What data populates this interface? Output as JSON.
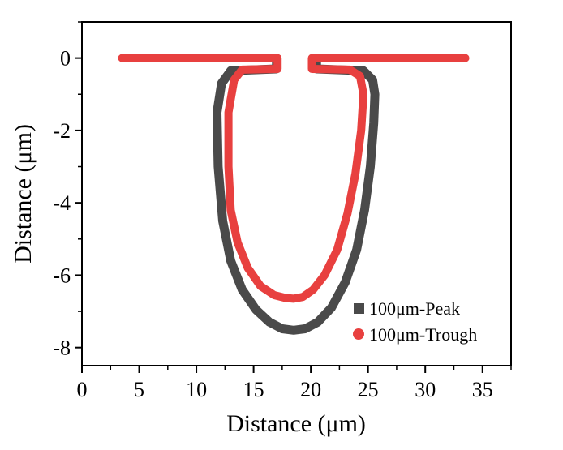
{
  "chart_data": {
    "type": "line",
    "title": "",
    "xlabel": "Distance (μm)",
    "ylabel": "Distance (μm)",
    "xlim": [
      0,
      37.5
    ],
    "ylim": [
      -8.5,
      1.0
    ],
    "xticks": [
      0,
      5,
      10,
      15,
      20,
      25,
      30,
      35
    ],
    "yticks": [
      0,
      -2,
      -4,
      -6,
      -8
    ],
    "grid": false,
    "legend_position": "bottom-right",
    "series": [
      {
        "name": "100μm-Peak",
        "color": "#4a4a4a",
        "marker": "square",
        "x": [
          17.0,
          17.0,
          13.0,
          12.2,
          11.8,
          11.9,
          12.3,
          13.0,
          14.0,
          15.2,
          16.4,
          17.5,
          18.5,
          19.5,
          20.6,
          21.8,
          23.0,
          24.0,
          24.7,
          25.2,
          25.5,
          25.6,
          25.4,
          24.6,
          20.5,
          20.5
        ],
        "y": [
          -0.05,
          -0.3,
          -0.35,
          -0.7,
          -1.5,
          -3.0,
          -4.5,
          -5.6,
          -6.4,
          -6.95,
          -7.3,
          -7.48,
          -7.52,
          -7.48,
          -7.3,
          -6.9,
          -6.2,
          -5.3,
          -4.2,
          -3.0,
          -1.8,
          -1.0,
          -0.6,
          -0.35,
          -0.3,
          -0.05
        ]
      },
      {
        "name": "100μm-Trough",
        "color": "#e8403f",
        "marker": "circle",
        "x": [
          3.5,
          8.0,
          12.0,
          16.0,
          17.1,
          17.1,
          14.0,
          13.3,
          12.8,
          12.8,
          13.0,
          13.6,
          14.5,
          15.6,
          16.8,
          17.8,
          18.5,
          19.3,
          20.2,
          21.2,
          22.3,
          23.2,
          23.9,
          24.4,
          24.6,
          24.3,
          23.4,
          20.1,
          20.1,
          24.0,
          28.0,
          33.5
        ],
        "y": [
          0.0,
          0.0,
          0.0,
          0.0,
          0.0,
          -0.3,
          -0.32,
          -0.6,
          -1.5,
          -3.0,
          -4.2,
          -5.1,
          -5.8,
          -6.3,
          -6.55,
          -6.63,
          -6.65,
          -6.6,
          -6.4,
          -6.0,
          -5.3,
          -4.3,
          -3.2,
          -2.0,
          -1.0,
          -0.5,
          -0.32,
          -0.3,
          0.0,
          0.0,
          0.0,
          0.0
        ]
      }
    ]
  }
}
